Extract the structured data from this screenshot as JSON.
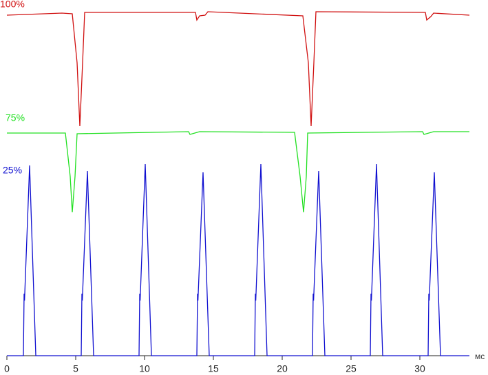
{
  "chart_data": {
    "type": "line",
    "xlabel": "мс",
    "xlim": [
      0,
      33.6
    ],
    "xticks": [
      0,
      5,
      10,
      15,
      20,
      25,
      30
    ],
    "ylim": [
      0,
      100
    ],
    "series": [
      {
        "name": "100%",
        "color": "#d01010",
        "x": [
          0,
          4,
          4.75,
          5.1,
          5.3,
          5.5,
          5.65,
          13.7,
          13.8,
          14.0,
          14.4,
          14.6,
          21.5,
          21.9,
          22.1,
          22.3,
          22.45,
          30.4,
          30.5,
          30.8,
          31.0,
          33.6
        ],
        "values": [
          98.8,
          99.4,
          99.2,
          85,
          66.6,
          85,
          99.6,
          99.6,
          97.4,
          98.6,
          98.8,
          99.8,
          98.6,
          85,
          66.6,
          85,
          99.8,
          99.6,
          97.4,
          98.4,
          99.4,
          98.8
        ]
      },
      {
        "name": "75%",
        "color": "#20e020",
        "x": [
          0,
          4.25,
          4.6,
          4.75,
          4.95,
          5.1,
          13.2,
          13.3,
          14,
          20.9,
          21.3,
          21.55,
          21.75,
          21.85,
          30.2,
          30.3,
          31,
          33.6
        ],
        "values": [
          64.6,
          64.6,
          52,
          41.6,
          52,
          64.4,
          65,
          64.2,
          65,
          64.8,
          52,
          41.6,
          52,
          64.6,
          65,
          64.2,
          65,
          65
        ]
      },
      {
        "name": "25%",
        "color": "#1010d0",
        "x": [
          0,
          1.2,
          1.25,
          1.28,
          1.65,
          2.1,
          5.4,
          5.45,
          5.48,
          5.85,
          6.3,
          9.6,
          9.65,
          9.68,
          10.05,
          10.5,
          13.8,
          13.85,
          13.88,
          14.25,
          14.7,
          18.0,
          18.05,
          18.08,
          18.45,
          18.9,
          22.2,
          22.25,
          22.28,
          22.65,
          23.1,
          26.4,
          26.45,
          26.48,
          26.85,
          27.3,
          30.6,
          30.65,
          30.68,
          31.05,
          31.5,
          33.6
        ],
        "values": [
          0,
          0,
          18,
          16,
          55.2,
          0,
          0,
          18,
          16,
          53.6,
          0,
          0,
          18,
          16,
          55.6,
          0,
          0,
          18,
          16,
          53.2,
          0,
          0,
          18,
          16,
          55.6,
          0,
          0,
          18,
          16,
          53.6,
          0,
          0,
          18,
          16,
          55.6,
          0,
          0,
          18,
          16,
          53.2,
          0,
          0
        ]
      }
    ]
  }
}
